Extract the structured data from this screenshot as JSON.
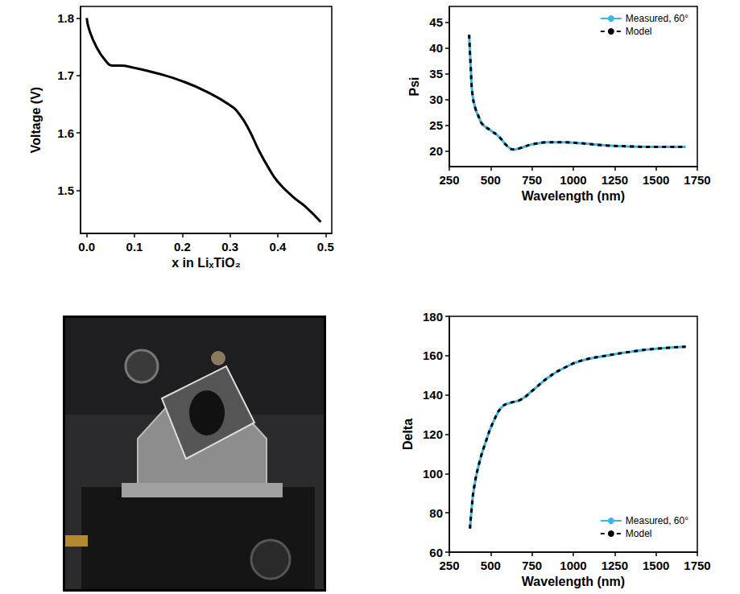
{
  "chart_data": [
    {
      "type": "line",
      "x_label": "x in LiₓTiO₂",
      "y_label": "Voltage (V)",
      "xlim": [
        -0.013,
        0.513
      ],
      "xticks": [
        {
          "value": 0,
          "label": "0.0"
        },
        0.1,
        0.2,
        0.3,
        0.4,
        0.5
      ],
      "ylim": [
        1.425,
        1.82
      ],
      "yticks": [
        1.5,
        1.6,
        1.7,
        1.8
      ],
      "grid": false,
      "series": [
        {
          "name": "Voltage",
          "color": "#000000",
          "line_style": "solid",
          "x": [
            0,
            0.005,
            0.02,
            0.04,
            0.055,
            0.07,
            0.1,
            0.15,
            0.2,
            0.25,
            0.3,
            0.32,
            0.34,
            0.36,
            0.38,
            0.4,
            0.43,
            0.46,
            0.49
          ],
          "values": [
            1.8,
            1.78,
            1.75,
            1.725,
            1.717,
            1.717,
            1.713,
            1.703,
            1.69,
            1.672,
            1.648,
            1.632,
            1.605,
            1.57,
            1.54,
            1.515,
            1.49,
            1.47,
            1.445
          ]
        }
      ]
    },
    {
      "type": "line",
      "x_label": "Wavelength (nm)",
      "y_label": "Psi",
      "xlim": [
        250,
        1750
      ],
      "xticks": [
        250,
        500,
        750,
        1000,
        1250,
        1500,
        1750
      ],
      "ylim": [
        17,
        48
      ],
      "yticks": [
        20,
        25,
        30,
        35,
        40,
        45
      ],
      "grid": false,
      "legend": "upper right",
      "series": [
        {
          "name": "Measured, 60°",
          "color": "#3ab5e6",
          "line_style": "solid",
          "x": [
            370,
            380,
            390,
            410,
            430,
            450,
            500,
            550,
            600,
            640,
            680,
            750,
            850,
            950,
            1050,
            1200,
            1350,
            1500,
            1680
          ],
          "values": [
            42.5,
            36,
            31,
            28,
            26.5,
            25.2,
            24,
            22.8,
            21,
            20.3,
            20.6,
            21.3,
            21.7,
            21.7,
            21.5,
            21.1,
            20.9,
            20.8,
            20.8
          ]
        },
        {
          "name": "Model",
          "color": "#000000",
          "line_style": "dashed",
          "x": [
            370,
            380,
            390,
            410,
            430,
            450,
            500,
            550,
            600,
            640,
            680,
            750,
            850,
            950,
            1050,
            1200,
            1350,
            1500,
            1680
          ],
          "values": [
            42.5,
            36,
            31,
            28,
            26.5,
            25.2,
            24,
            22.8,
            21,
            20.3,
            20.6,
            21.3,
            21.7,
            21.7,
            21.5,
            21.1,
            20.9,
            20.8,
            20.8
          ]
        }
      ]
    },
    {
      "type": "line",
      "x_label": "Wavelength (nm)",
      "y_label": "Delta",
      "xlim": [
        250,
        1750
      ],
      "xticks": [
        250,
        500,
        750,
        1000,
        1250,
        1500,
        1750
      ],
      "ylim": [
        60,
        180
      ],
      "yticks": [
        60,
        80,
        100,
        120,
        140,
        160,
        180
      ],
      "grid": false,
      "legend": "lower right",
      "series": [
        {
          "name": "Measured, 60°",
          "color": "#3ab5e6",
          "line_style": "solid",
          "x": [
            375,
            385,
            400,
            430,
            470,
            520,
            570,
            620,
            680,
            750,
            850,
            950,
            1050,
            1200,
            1350,
            1500,
            1680
          ],
          "values": [
            72,
            82,
            93,
            105,
            116,
            127,
            134,
            136,
            137.5,
            142,
            149,
            154,
            157.5,
            160,
            162,
            163.5,
            164.5
          ]
        },
        {
          "name": "Model",
          "color": "#000000",
          "line_style": "dashed",
          "x": [
            375,
            385,
            400,
            430,
            470,
            520,
            570,
            620,
            680,
            750,
            850,
            950,
            1050,
            1200,
            1350,
            1500,
            1680
          ],
          "values": [
            72,
            82,
            93,
            105,
            116,
            127,
            134,
            136,
            137.5,
            142,
            149,
            154,
            157.5,
            160,
            162,
            163.5,
            164.5
          ]
        }
      ]
    }
  ]
}
